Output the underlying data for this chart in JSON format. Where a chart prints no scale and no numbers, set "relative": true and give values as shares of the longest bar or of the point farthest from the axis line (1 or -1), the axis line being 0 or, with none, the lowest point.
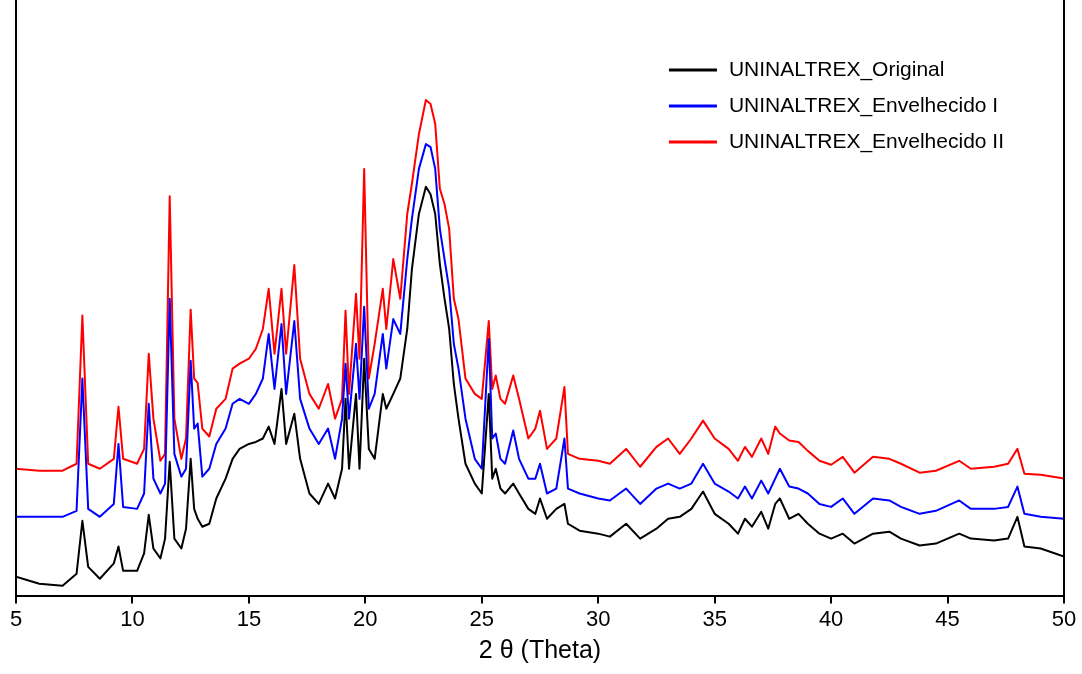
{
  "chart_data": {
    "type": "line",
    "xlabel": "2 θ (Theta)",
    "relative": true,
    "legend": "top right",
    "marker": "none",
    "line_style": "solid",
    "grid": false,
    "tick_labels": "x",
    "xlim": [
      5,
      50
    ],
    "xticks": [
      5,
      10,
      15,
      20,
      25,
      30,
      35,
      40,
      45,
      50
    ],
    "x": [
      5,
      6,
      7,
      7.6,
      7.85,
      8.1,
      8.6,
      9.2,
      9.4,
      9.6,
      10.2,
      10.5,
      10.7,
      10.9,
      11.2,
      11.4,
      11.6,
      11.8,
      12.1,
      12.3,
      12.5,
      12.65,
      12.8,
      13,
      13.3,
      13.6,
      14,
      14.3,
      14.6,
      15,
      15.3,
      15.6,
      15.85,
      16.1,
      16.4,
      16.6,
      16.95,
      17.2,
      17.6,
      18,
      18.4,
      18.7,
      19,
      19.15,
      19.3,
      19.6,
      19.75,
      19.95,
      20.15,
      20.4,
      20.75,
      20.9,
      21.2,
      21.5,
      21.8,
      22,
      22.3,
      22.6,
      22.8,
      23,
      23.2,
      23.4,
      23.6,
      23.8,
      24,
      24.3,
      24.7,
      25,
      25.3,
      25.45,
      25.6,
      25.8,
      26,
      26.35,
      26.6,
      27,
      27.3,
      27.5,
      27.8,
      28.2,
      28.55,
      28.7,
      29.2,
      30,
      30.5,
      31.2,
      31.8,
      32.5,
      33,
      33.5,
      34,
      34.5,
      35,
      35.6,
      36,
      36.3,
      36.6,
      37,
      37.3,
      37.6,
      37.8,
      38.2,
      38.6,
      39,
      39.5,
      40,
      40.5,
      41,
      41.8,
      42.5,
      43,
      43.8,
      44.5,
      45.5,
      46,
      47,
      47.6,
      48,
      48.3,
      49,
      50
    ],
    "series": [
      {
        "name": "UNINALTREX_Original",
        "color": "#000000",
        "values": [
          0.038,
          0.024,
          0.02,
          0.044,
          0.151,
          0.058,
          0.034,
          0.065,
          0.099,
          0.05,
          0.05,
          0.085,
          0.163,
          0.095,
          0.075,
          0.115,
          0.27,
          0.115,
          0.095,
          0.135,
          0.276,
          0.175,
          0.155,
          0.139,
          0.145,
          0.196,
          0.236,
          0.276,
          0.296,
          0.306,
          0.31,
          0.317,
          0.341,
          0.306,
          0.417,
          0.306,
          0.367,
          0.276,
          0.206,
          0.185,
          0.226,
          0.196,
          0.256,
          0.397,
          0.256,
          0.407,
          0.256,
          0.478,
          0.296,
          0.276,
          0.407,
          0.377,
          0.407,
          0.438,
          0.538,
          0.659,
          0.77,
          0.825,
          0.81,
          0.77,
          0.669,
          0.599,
          0.538,
          0.427,
          0.357,
          0.266,
          0.226,
          0.206,
          0.407,
          0.236,
          0.256,
          0.216,
          0.206,
          0.226,
          0.206,
          0.175,
          0.165,
          0.196,
          0.155,
          0.175,
          0.185,
          0.145,
          0.131,
          0.125,
          0.119,
          0.145,
          0.115,
          0.135,
          0.155,
          0.159,
          0.175,
          0.21,
          0.165,
          0.145,
          0.125,
          0.155,
          0.139,
          0.169,
          0.135,
          0.185,
          0.196,
          0.155,
          0.165,
          0.145,
          0.125,
          0.115,
          0.125,
          0.105,
          0.125,
          0.129,
          0.115,
          0.101,
          0.105,
          0.125,
          0.115,
          0.111,
          0.115,
          0.159,
          0.099,
          0.095,
          0.079
        ]
      },
      {
        "name": "UNINALTREX_Envelhecido I",
        "color": "#0000ff",
        "values": [
          0.159,
          0.159,
          0.159,
          0.171,
          0.438,
          0.175,
          0.159,
          0.185,
          0.306,
          0.179,
          0.175,
          0.206,
          0.387,
          0.236,
          0.206,
          0.226,
          0.599,
          0.286,
          0.24,
          0.256,
          0.474,
          0.337,
          0.347,
          0.24,
          0.256,
          0.306,
          0.337,
          0.387,
          0.397,
          0.387,
          0.407,
          0.438,
          0.528,
          0.417,
          0.548,
          0.407,
          0.554,
          0.397,
          0.337,
          0.306,
          0.337,
          0.276,
          0.357,
          0.468,
          0.357,
          0.508,
          0.397,
          0.583,
          0.377,
          0.407,
          0.528,
          0.458,
          0.558,
          0.528,
          0.679,
          0.76,
          0.861,
          0.911,
          0.905,
          0.861,
          0.74,
          0.679,
          0.619,
          0.508,
          0.458,
          0.357,
          0.276,
          0.256,
          0.518,
          0.317,
          0.327,
          0.276,
          0.266,
          0.333,
          0.276,
          0.236,
          0.236,
          0.266,
          0.206,
          0.216,
          0.317,
          0.216,
          0.206,
          0.196,
          0.192,
          0.216,
          0.185,
          0.216,
          0.226,
          0.216,
          0.226,
          0.266,
          0.226,
          0.21,
          0.196,
          0.22,
          0.196,
          0.232,
          0.206,
          0.236,
          0.256,
          0.22,
          0.216,
          0.206,
          0.185,
          0.179,
          0.196,
          0.165,
          0.196,
          0.192,
          0.179,
          0.165,
          0.171,
          0.192,
          0.175,
          0.175,
          0.179,
          0.22,
          0.165,
          0.159,
          0.155
        ]
      },
      {
        "name": "UNINALTREX_Envelhecido II",
        "color": "#ff0000",
        "values": [
          0.256,
          0.252,
          0.252,
          0.266,
          0.565,
          0.266,
          0.256,
          0.276,
          0.381,
          0.276,
          0.266,
          0.296,
          0.488,
          0.357,
          0.272,
          0.286,
          0.806,
          0.357,
          0.276,
          0.317,
          0.577,
          0.438,
          0.429,
          0.337,
          0.321,
          0.377,
          0.397,
          0.458,
          0.468,
          0.478,
          0.498,
          0.538,
          0.619,
          0.488,
          0.619,
          0.488,
          0.667,
          0.478,
          0.407,
          0.377,
          0.427,
          0.357,
          0.397,
          0.575,
          0.407,
          0.609,
          0.478,
          0.861,
          0.438,
          0.508,
          0.619,
          0.538,
          0.679,
          0.599,
          0.77,
          0.831,
          0.931,
          1,
          0.992,
          0.952,
          0.821,
          0.79,
          0.74,
          0.599,
          0.558,
          0.438,
          0.407,
          0.397,
          0.554,
          0.417,
          0.444,
          0.397,
          0.387,
          0.444,
          0.397,
          0.317,
          0.337,
          0.373,
          0.296,
          0.317,
          0.421,
          0.286,
          0.276,
          0.272,
          0.266,
          0.296,
          0.26,
          0.3,
          0.317,
          0.286,
          0.317,
          0.353,
          0.317,
          0.296,
          0.272,
          0.3,
          0.28,
          0.317,
          0.286,
          0.341,
          0.327,
          0.313,
          0.31,
          0.292,
          0.272,
          0.264,
          0.28,
          0.248,
          0.28,
          0.276,
          0.266,
          0.248,
          0.252,
          0.272,
          0.256,
          0.26,
          0.266,
          0.296,
          0.246,
          0.244,
          0.236
        ]
      }
    ]
  }
}
